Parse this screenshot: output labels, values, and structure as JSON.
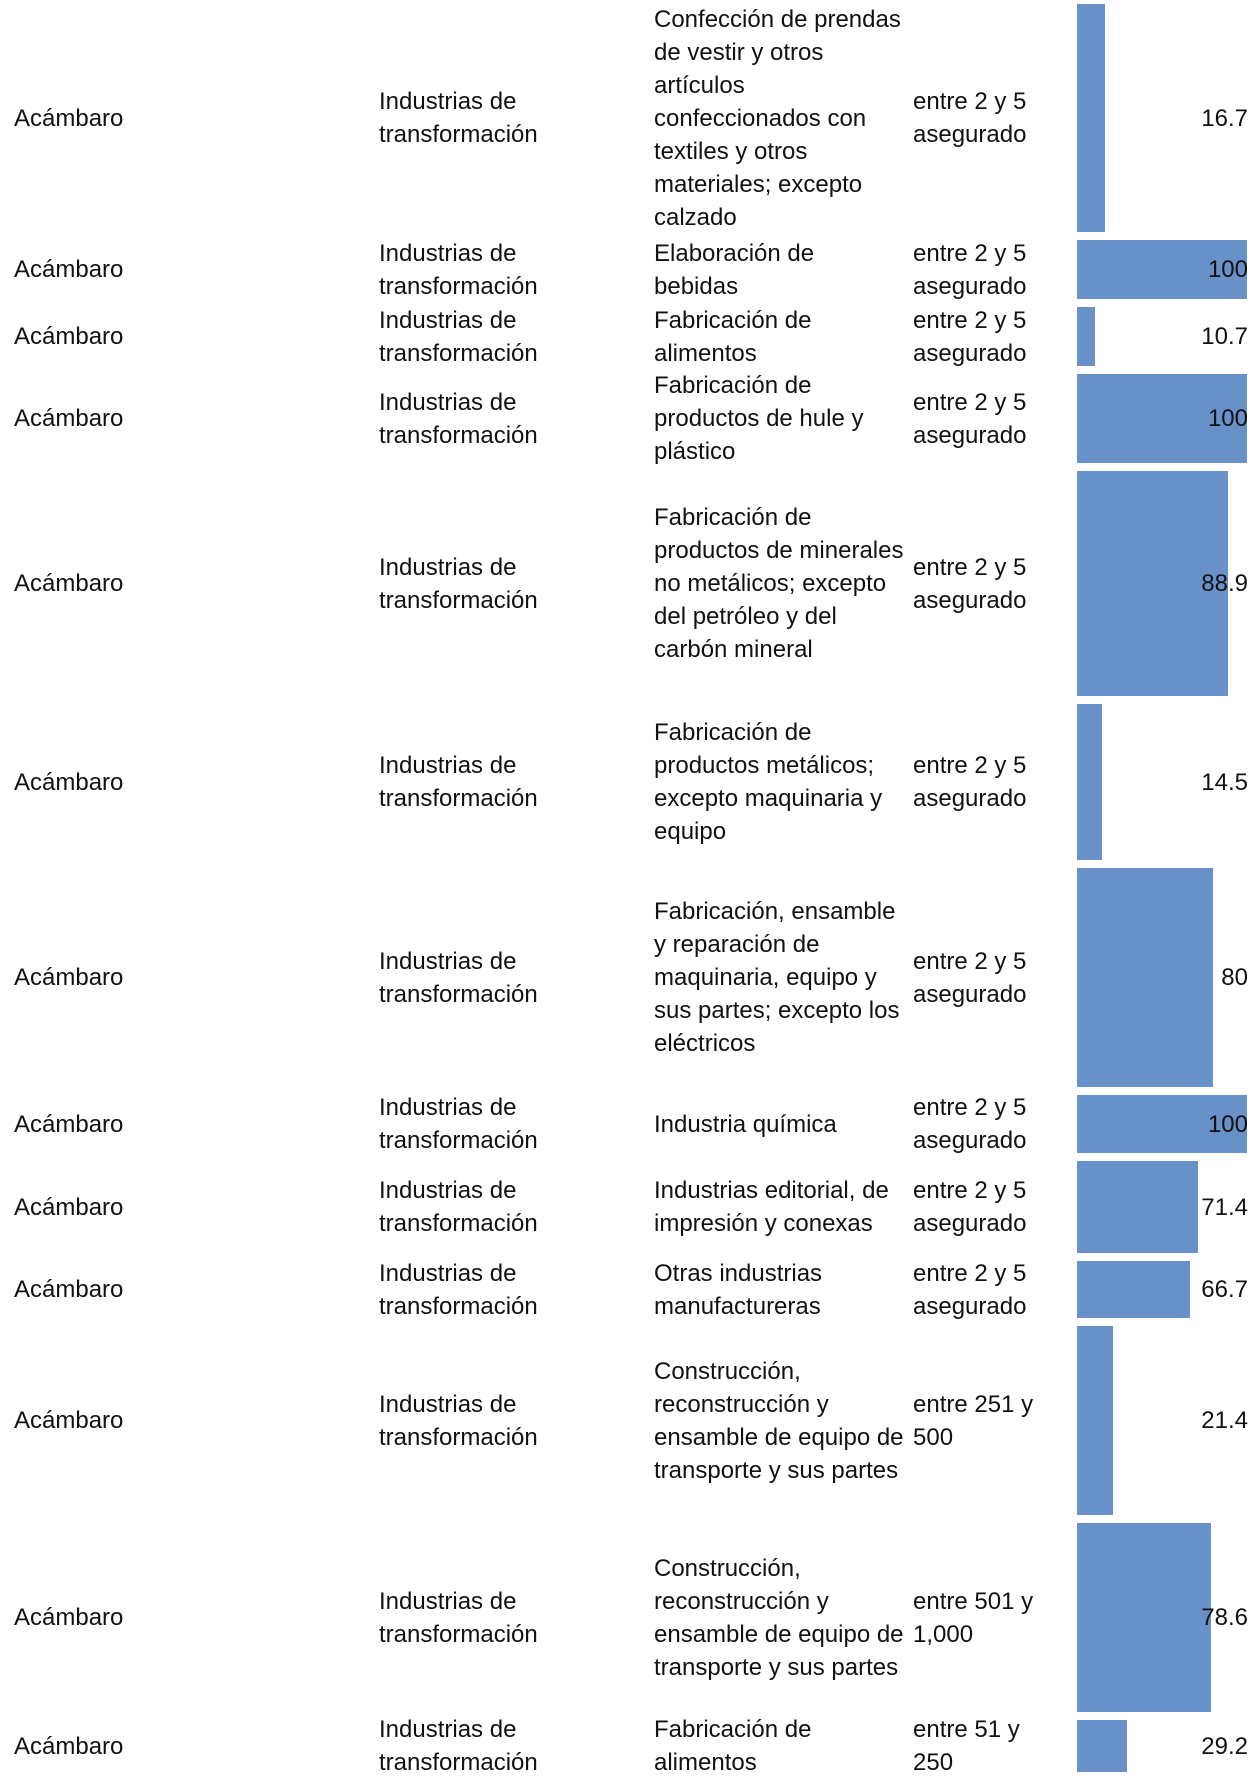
{
  "accent_color": "#6891c9",
  "rows": [
    {
      "municipio": "Acámbaro",
      "sector": "Industrias de transformación",
      "subsector": "Confección de prendas de vestir y otros artículos confeccionados con textiles y otros materiales; excepto calzado",
      "tamano": "entre 2 y 5 asegurado",
      "valor": 16.7,
      "valor_label": "16.7"
    },
    {
      "municipio": "Acámbaro",
      "sector": "Industrias de transformación",
      "subsector": "Elaboración de bebidas",
      "tamano": "entre 2 y 5 asegurado",
      "valor": 100,
      "valor_label": "100"
    },
    {
      "municipio": "Acámbaro",
      "sector": "Industrias de transformación",
      "subsector": "Fabricación de alimentos",
      "tamano": "entre 2 y 5 asegurado",
      "valor": 10.7,
      "valor_label": "10.7"
    },
    {
      "municipio": "Acámbaro",
      "sector": "Industrias de transformación",
      "subsector": "Fabricación de productos de hule y plástico",
      "tamano": "entre 2 y 5 asegurado",
      "valor": 100,
      "valor_label": "100"
    },
    {
      "municipio": "Acámbaro",
      "sector": "Industrias de transformación",
      "subsector": "Fabricación de productos de minerales no metálicos; excepto del petróleo y del carbón mineral",
      "tamano": "entre 2 y 5 asegurado",
      "valor": 88.9,
      "valor_label": "88.9"
    },
    {
      "municipio": "Acámbaro",
      "sector": "Industrias de transformación",
      "subsector": "Fabricación de productos metálicos; excepto maquinaria y equipo",
      "tamano": "entre 2 y 5 asegurado",
      "valor": 14.5,
      "valor_label": "14.5"
    },
    {
      "municipio": "Acámbaro",
      "sector": "Industrias de transformación",
      "subsector": "Fabricación, ensamble y reparación de maquinaria, equipo y sus partes; excepto los eléctricos",
      "tamano": "entre 2 y 5 asegurado",
      "valor": 80,
      "valor_label": "80"
    },
    {
      "municipio": "Acámbaro",
      "sector": "Industrias de transformación",
      "subsector": "Industria química",
      "tamano": "entre 2 y 5 asegurado",
      "valor": 100,
      "valor_label": "100"
    },
    {
      "municipio": "Acámbaro",
      "sector": "Industrias de transformación",
      "subsector": "Industrias editorial, de impresión y conexas",
      "tamano": "entre 2 y 5 asegurado",
      "valor": 71.4,
      "valor_label": "71.4"
    },
    {
      "municipio": "Acámbaro",
      "sector": "Industrias de transformación",
      "subsector": "Otras industrias manufactureras",
      "tamano": "entre 2 y 5 asegurado",
      "valor": 66.7,
      "valor_label": "66.7"
    },
    {
      "municipio": "Acámbaro",
      "sector": "Industrias de transformación",
      "subsector": "Construcción, reconstrucción y ensamble de equipo de transporte y sus partes",
      "tamano": "entre 251 y 500",
      "valor": 21.4,
      "valor_label": "21.4"
    },
    {
      "municipio": "Acámbaro",
      "sector": "Industrias de transformación",
      "subsector": "Construcción, reconstrucción y ensamble de equipo de transporte y sus partes",
      "tamano": "entre 501 y 1,000",
      "valor": 78.6,
      "valor_label": "78.6"
    },
    {
      "municipio": "Acámbaro",
      "sector": "Industrias de transformación",
      "subsector": "Fabricación de alimentos",
      "tamano": "entre 51 y 250",
      "valor": 29.2,
      "valor_label": "29.2"
    }
  ]
}
